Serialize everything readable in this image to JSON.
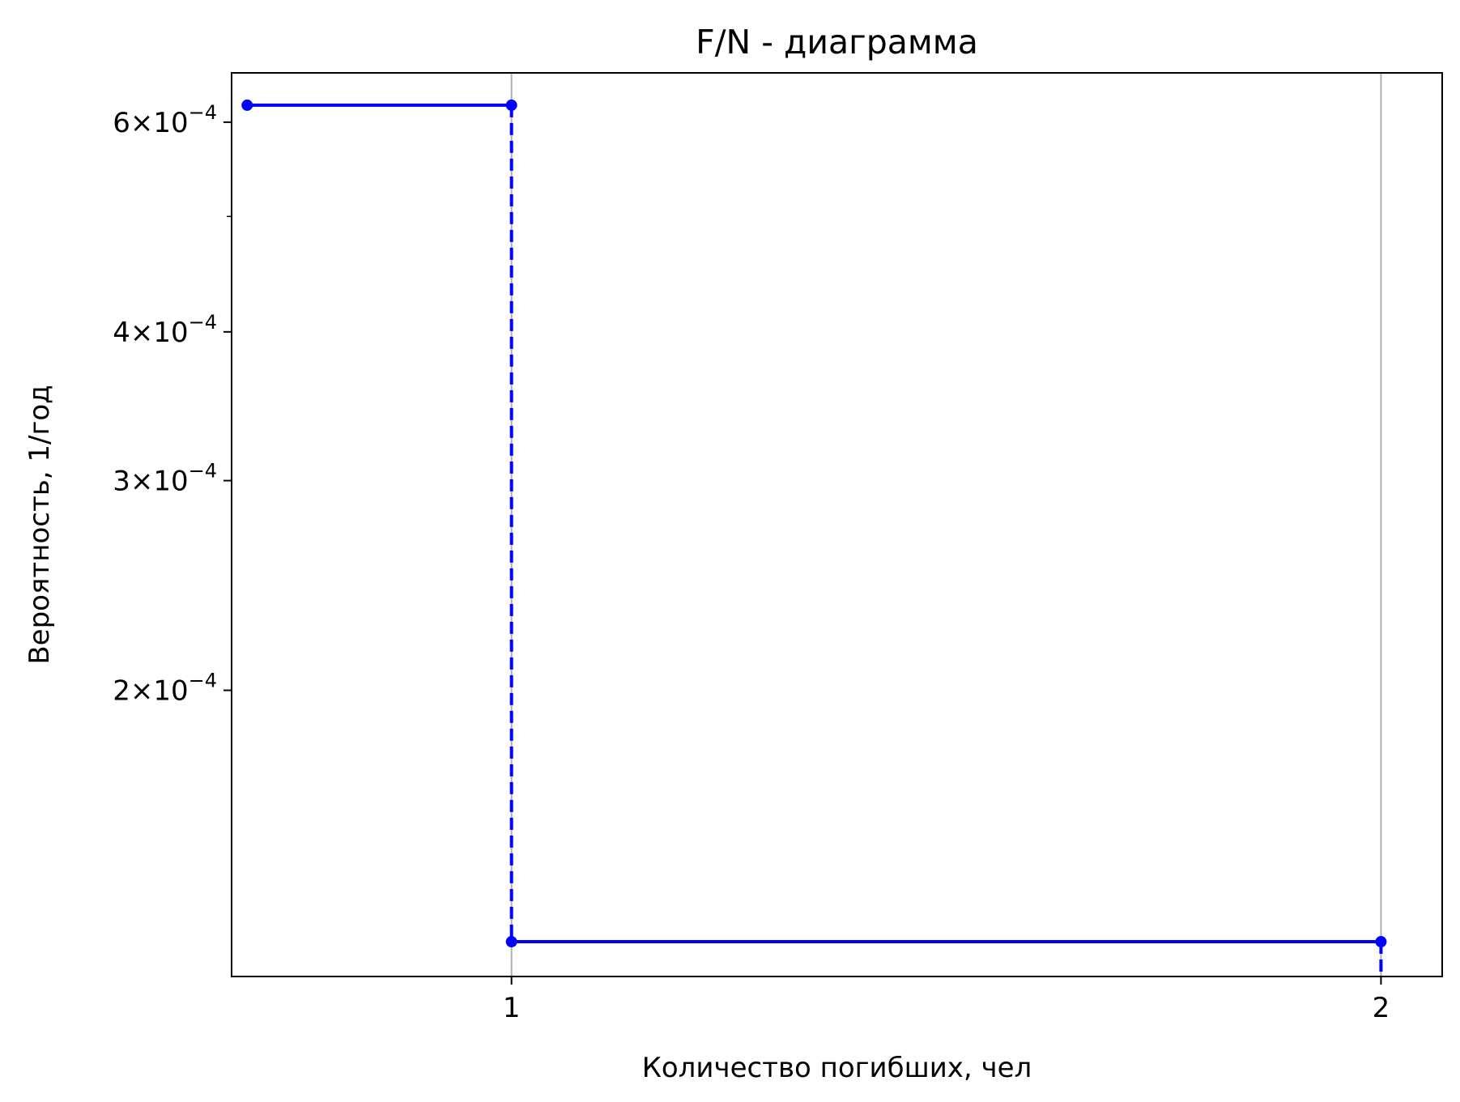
{
  "chart_data": {
    "type": "line",
    "title": "F/N - диаграмма",
    "xlabel": "Количество погибших, чел",
    "ylabel": "Вероятность, 1/год",
    "x_scale": "log",
    "y_scale": "log",
    "xlim": [
      0.8,
      2.1
    ],
    "ylim": [
      0.000115,
      0.00066
    ],
    "grid": "vertical",
    "x_ticks": [
      {
        "value": 1,
        "label": "1"
      },
      {
        "value": 2,
        "label": "2"
      }
    ],
    "y_ticks": [
      {
        "value": 0.0002,
        "mantissa": "2",
        "exponent": "−4"
      },
      {
        "value": 0.0003,
        "mantissa": "3",
        "exponent": "−4"
      },
      {
        "value": 0.0004,
        "mantissa": "4",
        "exponent": "−4"
      },
      {
        "value": 0.0006,
        "mantissa": "6",
        "exponent": "−4"
      }
    ],
    "y_minor_ticks": [
      0.0005
    ],
    "series": [
      {
        "color": "#0000ff",
        "x": [
          0.81,
          1,
          1,
          2,
          2
        ],
        "y": [
          0.00062,
          0.00062,
          0.000123,
          0.000123,
          0.000115
        ],
        "markers": [
          [
            0.81,
            0.00062
          ],
          [
            1,
            0.00062
          ],
          [
            1,
            0.000123
          ],
          [
            2,
            0.000123
          ]
        ],
        "segments": [
          "solid",
          "dashed",
          "solid",
          "dashed"
        ]
      }
    ]
  }
}
